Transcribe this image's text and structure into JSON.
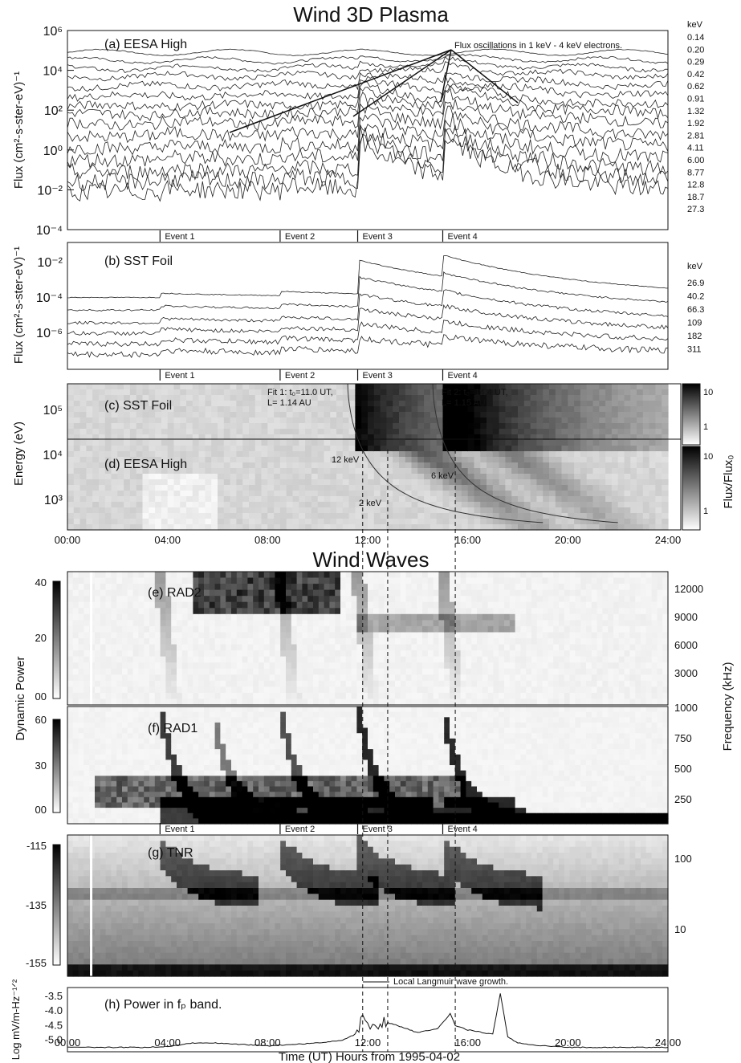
{
  "titles": {
    "top": "Wind 3D Plasma",
    "middle": "Wind Waves"
  },
  "panels": {
    "a": {
      "label": "(a) EESA High",
      "ylabel": "Flux (cm²-s-ster-eV)⁻¹",
      "annotation": "Flux oscillations in 1 keV - 4 keV electrons.",
      "unit": "keV",
      "energies": [
        "0.14",
        "0.20",
        "0.29",
        "0.42",
        "0.62",
        "0.91",
        "1.32",
        "1.92",
        "2.81",
        "4.11",
        "6.00",
        "8.77",
        "12.8",
        "18.7",
        "27.3"
      ],
      "yticks": [
        "10⁶",
        "10⁴",
        "10²",
        "10⁰",
        "10⁻²",
        "10⁻⁴"
      ]
    },
    "b": {
      "label": "(b) SST Foil",
      "ylabel": "Flux (cm²-s-ster-eV)⁻¹",
      "unit": "keV",
      "energies": [
        "26.9",
        "40.2",
        "66.3",
        "109",
        "182",
        "311"
      ],
      "yticks": [
        "10⁻²",
        "10⁻⁴",
        "10⁻⁶"
      ]
    },
    "cd": {
      "label_c": "(c) SST Foil",
      "label_d": "(d) EESA High",
      "ylabel": "Energy (eV)",
      "fit1": "Fit 1: t₀=11.0 UT,",
      "fit1b": "L= 1.14 AU",
      "fit2": "Fit 2: t₀=14.4 UT,",
      "fit2b": "L= 1.15 AU",
      "mark12": "12 keV",
      "mark6": "6 keV",
      "mark2": "2 keV",
      "yticks": [
        "10⁵",
        "10⁴",
        "10³"
      ],
      "cbar_label": "Flux/Flux₀",
      "cbar_top": [
        "10",
        "1"
      ],
      "cbar_bot": [
        "10",
        "1"
      ]
    },
    "e": {
      "label": "(e) RAD2",
      "cbar": [
        "40",
        "20",
        "00"
      ],
      "freq": [
        "12000",
        "9000",
        "6000",
        "3000"
      ]
    },
    "f": {
      "label": "(f) RAD1",
      "cbar": [
        "60",
        "30",
        "00"
      ],
      "freq": [
        "1000",
        "750",
        "500",
        "250"
      ]
    },
    "g": {
      "label": "(g) TNR",
      "cbar": [
        "-115",
        "-135",
        "-155"
      ],
      "freq": [
        "100",
        "10"
      ]
    },
    "h": {
      "label": "(h) Power in fₚ band.",
      "ylabel": "Log mV/m-Hz⁻¹ᐟ²",
      "yticks": [
        "-3.5",
        "-4.0",
        "-4.5",
        "-5.0"
      ],
      "langmuir": "Local Langmuir wave growth."
    },
    "ylabel_dyn": "Dynamic Power",
    "ylabel_freq": "Frequency (kHz)"
  },
  "events": [
    "Event 1",
    "Event 2",
    "Event 3",
    "Event 4"
  ],
  "time_ticks": [
    "00:00",
    "04:00",
    "08:00",
    "12:00",
    "16:00",
    "20:00",
    "24:00"
  ],
  "xlabel": "Time (UT) Hours from 1995-04-02",
  "chart_data": [
    {
      "type": "line",
      "title": "Wind 3D Plasma",
      "panel": "(a) EESA High",
      "xlabel": "Time (UT) Hours from 1995-04-02",
      "ylabel": "Flux (cm2-s-ster-eV)-1",
      "x_range_hours": [
        0,
        24
      ],
      "ylim": [
        0.0001,
        1000000.0
      ],
      "y_scale": "log",
      "series_names_keV": [
        "0.14",
        "0.20",
        "0.29",
        "0.42",
        "0.62",
        "0.91",
        "1.32",
        "1.92",
        "2.81",
        "4.11",
        "6.00",
        "8.77",
        "12.8",
        "18.7",
        "27.3"
      ],
      "baseline_log10_flux": [
        4.9,
        4.5,
        4.1,
        3.7,
        3.2,
        2.7,
        2.2,
        1.8,
        1.3,
        0.7,
        0.1,
        -0.5,
        -1.1,
        -1.6,
        -2.1
      ]
    },
    {
      "type": "line",
      "panel": "(b) SST Foil",
      "ylim": [
        1e-07,
        0.1
      ],
      "y_scale": "log",
      "series_names_keV": [
        "26.9",
        "40.2",
        "66.3",
        "109",
        "182",
        "311"
      ],
      "baseline_log10_flux": [
        -3.6,
        -4.2,
        -4.8,
        -5.3,
        -5.8,
        -6.3
      ],
      "event_peaks_hours": [
        11.8,
        15.0
      ]
    },
    {
      "type": "heatmap",
      "panel": "(c)/(d) Energy spectrogram",
      "ylabel": "Energy (eV)",
      "ylim": [
        300,
        300000.0
      ],
      "y_scale": "log",
      "fits": [
        {
          "t0_UT": 11.0,
          "L_AU": 1.14
        },
        {
          "t0_UT": 14.4,
          "L_AU": 1.15
        }
      ]
    },
    {
      "type": "heatmap",
      "panel": "(e) RAD2",
      "ylim_kHz": [
        1000,
        13000
      ]
    },
    {
      "type": "heatmap",
      "panel": "(f) RAD1",
      "ylim_kHz": [
        0,
        1000
      ]
    },
    {
      "type": "heatmap",
      "panel": "(g) TNR",
      "ylim_kHz": [
        5,
        200
      ],
      "y_scale": "log"
    },
    {
      "type": "line",
      "panel": "(h) Power in fp band.",
      "ylabel": "Log mV/m-Hz-1/2",
      "ylim": [
        -5.4,
        -3.2
      ],
      "x": [
        0,
        3,
        4,
        5,
        6,
        8,
        10,
        11,
        11.5,
        11.8,
        12.0,
        12.2,
        12.5,
        12.8,
        13.2,
        14.0,
        14.8,
        15.3,
        15.5,
        16.0,
        17.0,
        17.3,
        17.6,
        18.0,
        19.0,
        20.0,
        23.0,
        24.0
      ],
      "y": [
        -5.25,
        -5.25,
        -5.22,
        -5.1,
        -5.1,
        -5.2,
        -5.1,
        -5.0,
        -4.8,
        -4.2,
        -4.55,
        -4.3,
        -4.5,
        -4.4,
        -4.5,
        -4.75,
        -4.6,
        -4.1,
        -4.5,
        -4.65,
        -4.8,
        -3.4,
        -4.9,
        -5.1,
        -5.2,
        -5.25,
        -5.25,
        -5.25
      ]
    }
  ]
}
